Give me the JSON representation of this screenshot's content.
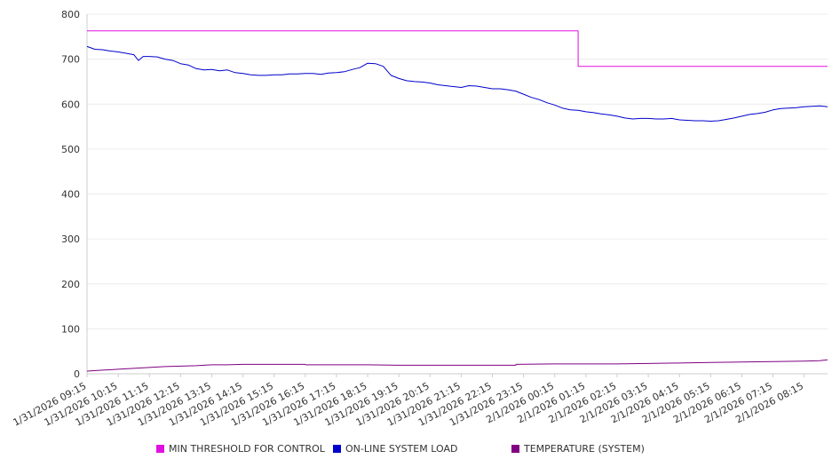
{
  "chart_data": {
    "type": "line",
    "title": "",
    "xlabel": "",
    "ylabel": "",
    "ylim": [
      0,
      800
    ],
    "yticks": [
      0,
      100,
      200,
      300,
      400,
      500,
      600,
      700,
      800
    ],
    "grid": true,
    "legend_position": "bottom",
    "x_tick_labels": [
      "1/31/2026 09:15",
      "1/31/2026 10:15",
      "1/31/2026 11:15",
      "1/31/2026 12:15",
      "1/31/2026 13:15",
      "1/31/2026 14:15",
      "1/31/2026 15:15",
      "1/31/2026 16:15",
      "1/31/2026 17:15",
      "1/31/2026 18:15",
      "1/31/2026 19:15",
      "1/31/2026 20:15",
      "1/31/2026 21:15",
      "1/31/2026 22:15",
      "1/31/2026 23:15",
      "2/1/2026 00:15",
      "2/1/2026 01:15",
      "2/1/2026 02:15",
      "2/1/2026 03:15",
      "2/1/2026 04:15",
      "2/1/2026 05:15",
      "2/1/2026 06:15",
      "2/1/2026 07:15",
      "2/1/2026 08:15"
    ],
    "series": [
      {
        "name": "MIN THRESHOLD FOR CONTROL",
        "color": "#e010e0",
        "step": true,
        "values": [
          [
            0,
            763
          ],
          [
            15.75,
            763
          ],
          [
            15.75,
            684
          ],
          [
            23.75,
            684
          ]
        ]
      },
      {
        "name": "ON-LINE SYSTEM LOAD",
        "color": "#0000cc",
        "values": [
          [
            0,
            728
          ],
          [
            0.25,
            722
          ],
          [
            0.5,
            721
          ],
          [
            0.75,
            718
          ],
          [
            1,
            716
          ],
          [
            1.25,
            713
          ],
          [
            1.5,
            710
          ],
          [
            1.65,
            697
          ],
          [
            1.8,
            706
          ],
          [
            2,
            706
          ],
          [
            2.25,
            705
          ],
          [
            2.5,
            700
          ],
          [
            2.75,
            697
          ],
          [
            3,
            690
          ],
          [
            3.25,
            687
          ],
          [
            3.5,
            679
          ],
          [
            3.75,
            676
          ],
          [
            4,
            677
          ],
          [
            4.25,
            674
          ],
          [
            4.5,
            676
          ],
          [
            4.75,
            670
          ],
          [
            5,
            668
          ],
          [
            5.25,
            665
          ],
          [
            5.5,
            664
          ],
          [
            5.75,
            664
          ],
          [
            6,
            665
          ],
          [
            6.25,
            665
          ],
          [
            6.5,
            667
          ],
          [
            6.75,
            667
          ],
          [
            7,
            668
          ],
          [
            7.25,
            668
          ],
          [
            7.5,
            666
          ],
          [
            7.75,
            669
          ],
          [
            8,
            670
          ],
          [
            8.25,
            672
          ],
          [
            8.5,
            677
          ],
          [
            8.75,
            681
          ],
          [
            9,
            691
          ],
          [
            9.25,
            690
          ],
          [
            9.5,
            684
          ],
          [
            9.75,
            664
          ],
          [
            10,
            657
          ],
          [
            10.25,
            652
          ],
          [
            10.5,
            650
          ],
          [
            10.75,
            649
          ],
          [
            11,
            647
          ],
          [
            11.25,
            643
          ],
          [
            11.5,
            641
          ],
          [
            11.75,
            639
          ],
          [
            12,
            637
          ],
          [
            12.25,
            641
          ],
          [
            12.5,
            640
          ],
          [
            12.75,
            637
          ],
          [
            13,
            634
          ],
          [
            13.25,
            634
          ],
          [
            13.5,
            632
          ],
          [
            13.75,
            629
          ],
          [
            14,
            622
          ],
          [
            14.25,
            615
          ],
          [
            14.5,
            610
          ],
          [
            14.75,
            603
          ],
          [
            15,
            598
          ],
          [
            15.25,
            591
          ],
          [
            15.5,
            587
          ],
          [
            15.75,
            586
          ],
          [
            16,
            583
          ],
          [
            16.25,
            581
          ],
          [
            16.5,
            578
          ],
          [
            16.75,
            576
          ],
          [
            17,
            573
          ],
          [
            17.25,
            569
          ],
          [
            17.5,
            567
          ],
          [
            17.75,
            568
          ],
          [
            18,
            568
          ],
          [
            18.25,
            567
          ],
          [
            18.5,
            567
          ],
          [
            18.75,
            568
          ],
          [
            19,
            565
          ],
          [
            19.25,
            564
          ],
          [
            19.5,
            563
          ],
          [
            19.75,
            563
          ],
          [
            20,
            562
          ],
          [
            20.25,
            563
          ],
          [
            20.5,
            566
          ],
          [
            20.75,
            569
          ],
          [
            21,
            573
          ],
          [
            21.25,
            577
          ],
          [
            21.5,
            579
          ],
          [
            21.75,
            582
          ],
          [
            22,
            587
          ],
          [
            22.25,
            590
          ],
          [
            22.5,
            591
          ],
          [
            22.75,
            592
          ],
          [
            23,
            594
          ],
          [
            23.25,
            595
          ],
          [
            23.5,
            596
          ],
          [
            23.75,
            594
          ]
        ]
      },
      {
        "name": "TEMPERATURE (SYSTEM)",
        "color": "#800080",
        "values": [
          [
            0,
            6
          ],
          [
            0.5,
            8
          ],
          [
            1,
            10
          ],
          [
            1.5,
            12
          ],
          [
            2,
            14
          ],
          [
            2.5,
            16
          ],
          [
            3,
            17
          ],
          [
            3.5,
            18
          ],
          [
            4,
            20
          ],
          [
            4.5,
            20
          ],
          [
            5,
            21
          ],
          [
            6,
            21
          ],
          [
            7,
            21
          ],
          [
            7.01,
            20
          ],
          [
            8,
            20
          ],
          [
            9,
            20
          ],
          [
            10,
            19
          ],
          [
            11,
            19
          ],
          [
            12,
            19
          ],
          [
            13,
            19
          ],
          [
            13.75,
            19
          ],
          [
            13.76,
            21
          ],
          [
            15,
            22
          ],
          [
            16,
            22
          ],
          [
            17,
            22
          ],
          [
            18,
            23
          ],
          [
            19,
            24
          ],
          [
            20,
            25
          ],
          [
            21,
            26
          ],
          [
            22,
            27
          ],
          [
            23,
            28
          ],
          [
            23.5,
            29
          ],
          [
            23.75,
            31
          ]
        ]
      }
    ]
  },
  "legend": {
    "items": [
      {
        "label": "MIN THRESHOLD FOR CONTROL",
        "color": "#e010e0"
      },
      {
        "label": "ON-LINE SYSTEM LOAD",
        "color": "#0000cc"
      },
      {
        "label": "TEMPERATURE (SYSTEM)",
        "color": "#800080"
      }
    ]
  }
}
